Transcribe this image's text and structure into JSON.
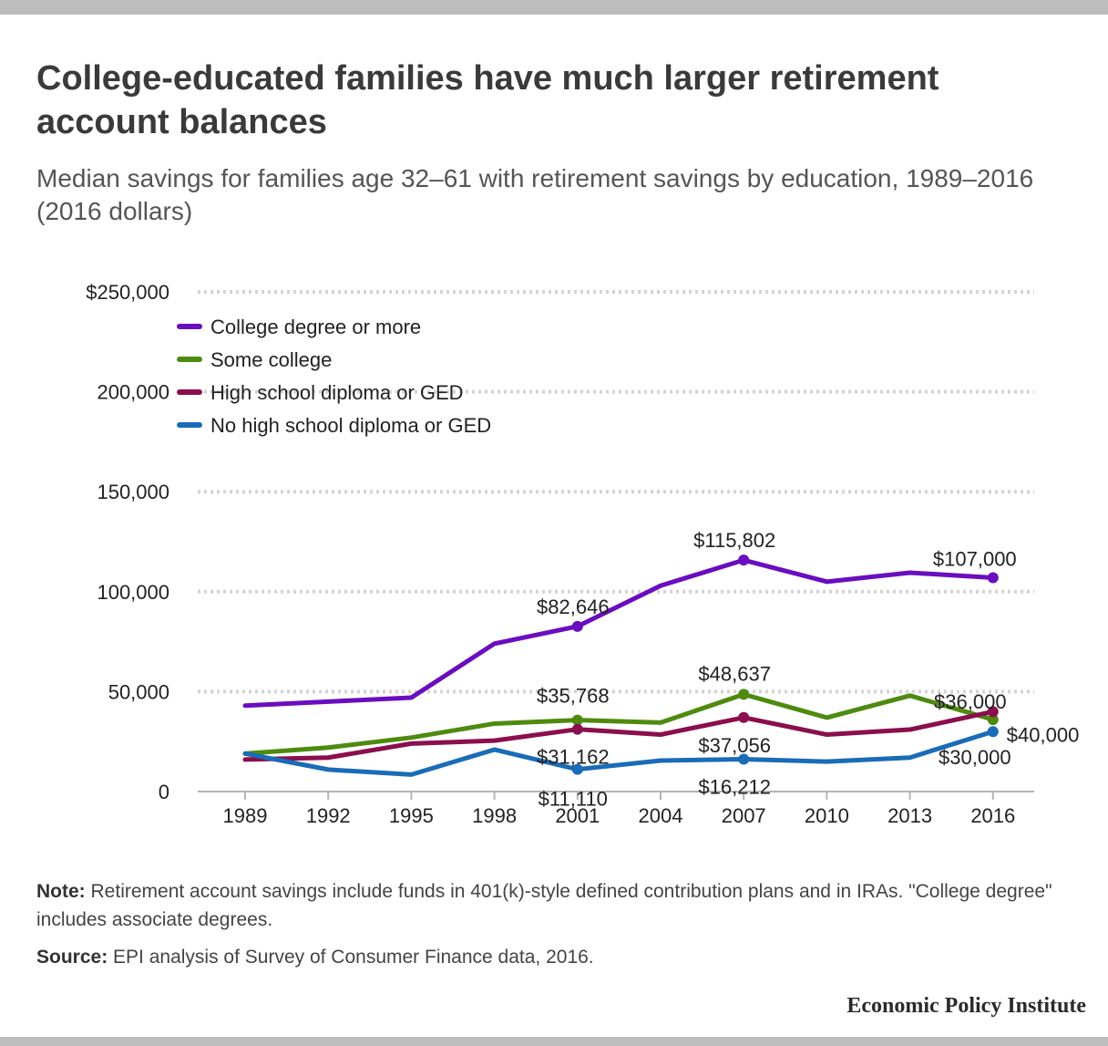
{
  "title": "College-educated families have much larger retirement account balances",
  "subtitle": "Median savings for families age 32–61 with retirement savings by education, 1989–2016 (2016 dollars)",
  "note_label": "Note:",
  "note_text": "Retirement account savings include funds in 401(k)-style defined contribution plans and in IRAs. \"College degree\" includes associate degrees.",
  "source_label": "Source:",
  "source_text": "EPI analysis of Survey of Consumer Finance data, 2016.",
  "brand": "Economic Policy Institute",
  "chart_data": {
    "type": "line",
    "x": [
      "1989",
      "1992",
      "1995",
      "1998",
      "2001",
      "2004",
      "2007",
      "2010",
      "2013",
      "2016"
    ],
    "ylim": [
      0,
      250000
    ],
    "yticks": [
      0,
      50000,
      100000,
      150000,
      200000,
      250000
    ],
    "ytick_labels": [
      "0",
      "50,000",
      "100,000",
      "150,000",
      "200,000",
      "$250,000"
    ],
    "grid": true,
    "legend_position": "top-left",
    "series": [
      {
        "name": "College degree or more",
        "color": "#6a0dbf",
        "values": [
          43000,
          45000,
          47000,
          74000,
          82646,
          103000,
          115802,
          105000,
          109500,
          107000
        ],
        "labels": [
          {
            "index": 4,
            "text": "$82,646"
          },
          {
            "index": 6,
            "text": "$115,802"
          },
          {
            "index": 9,
            "text": "$107,000"
          }
        ]
      },
      {
        "name": "Some college",
        "color": "#4f8a10",
        "values": [
          19000,
          22000,
          27000,
          34000,
          35768,
          34500,
          48637,
          37000,
          48000,
          36000
        ],
        "labels": [
          {
            "index": 4,
            "text": "$35,768"
          },
          {
            "index": 6,
            "text": "$48,637"
          },
          {
            "index": 9,
            "text": "$36,000"
          }
        ]
      },
      {
        "name": "High school diploma or GED",
        "color": "#8b0e4d",
        "values": [
          16000,
          17000,
          24000,
          25500,
          31162,
          28500,
          37056,
          28500,
          31000,
          40000
        ],
        "labels": [
          {
            "index": 4,
            "text": "$31,162"
          },
          {
            "index": 6,
            "text": "$37,056"
          },
          {
            "index": 9,
            "text": "$40,000"
          }
        ]
      },
      {
        "name": "No high school diploma or GED",
        "color": "#1a6bb8",
        "values": [
          19000,
          11000,
          8500,
          21000,
          11110,
          15500,
          16212,
          15000,
          17000,
          30000
        ],
        "labels": [
          {
            "index": 4,
            "text": "$11,110"
          },
          {
            "index": 6,
            "text": "$16,212"
          },
          {
            "index": 9,
            "text": "$30,000"
          }
        ]
      }
    ]
  }
}
